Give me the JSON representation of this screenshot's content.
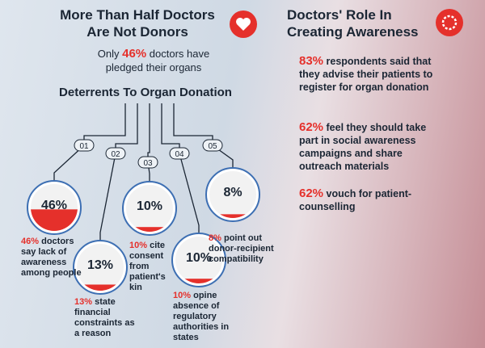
{
  "left": {
    "title_lines": [
      "More Than Half Doctors",
      "Are Not Donors"
    ],
    "subtitle": {
      "before": "Only",
      "highlight": "46%",
      "after": "doctors have pledged their organs"
    },
    "deterrents_title": "Deterrents To Organ Donation",
    "items": [
      {
        "number": "01",
        "value": 46,
        "value_label": "46%",
        "highlight": "46%",
        "text": "doctors say lack of awareness among people"
      },
      {
        "number": "02",
        "value": 13,
        "value_label": "13%",
        "highlight": "13%",
        "text": "state financial constraints as a reason"
      },
      {
        "number": "03",
        "value": 10,
        "value_label": "10%",
        "highlight": "10%",
        "text": "cite consent from patient's kin"
      },
      {
        "number": "04",
        "value": 10,
        "value_label": "10%",
        "highlight": "10%",
        "text": "opine absence of regulatory authorities in states"
      },
      {
        "number": "05",
        "value": 8,
        "value_label": "8%",
        "highlight": "8%",
        "text": "point out donor-recipient compatibility"
      }
    ]
  },
  "right": {
    "title_lines": [
      "Doctors' Role In",
      "Creating Awareness"
    ],
    "stats": [
      {
        "highlight": "83%",
        "text": "respondents said that they advise their patients to register for organ donation"
      },
      {
        "highlight": "62%",
        "text": "feel they should take part in social awareness campaigns and share outreach materials"
      },
      {
        "highlight": "62%",
        "text": "vouch for patient-counselling"
      }
    ]
  }
}
